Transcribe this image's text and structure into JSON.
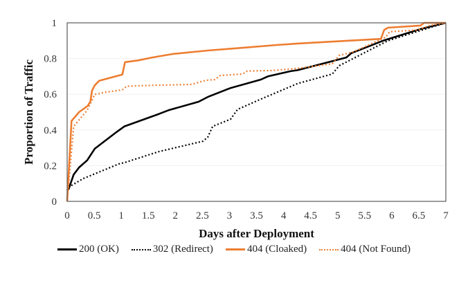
{
  "chart_data": {
    "type": "line",
    "title": "",
    "xlabel": "Days after Deployment",
    "ylabel": "Proportion of  Traffic",
    "xlim": [
      0,
      7
    ],
    "ylim": [
      0,
      1
    ],
    "xticks": [
      "0",
      "0.5",
      "1",
      "1.5",
      "2",
      "2.5",
      "3",
      "3.5",
      "4",
      "4.5",
      "5",
      "5.5",
      "6",
      "6.5",
      "7"
    ],
    "yticks": [
      "0",
      "0.2",
      "0.4",
      "0.6",
      "0.8",
      "1"
    ],
    "grid": "horizontal-light",
    "legend_position": "bottom",
    "series": [
      {
        "name": "200 (OK)",
        "color": "#000000",
        "style": "solid",
        "x": [
          0,
          0.03,
          0.12,
          0.22,
          0.37,
          0.51,
          0.92,
          1.06,
          1.7,
          1.87,
          2.43,
          2.6,
          3.02,
          3.58,
          3.71,
          4.13,
          4.26,
          5.16,
          5.25,
          5.84,
          6.53,
          7.0
        ],
        "y": [
          0.06,
          0.07,
          0.15,
          0.19,
          0.23,
          0.295,
          0.39,
          0.42,
          0.49,
          0.51,
          0.558,
          0.585,
          0.635,
          0.682,
          0.7,
          0.729,
          0.735,
          0.806,
          0.83,
          0.9,
          0.965,
          1.0
        ]
      },
      {
        "name": "302 (Redirect)",
        "color": "#000000",
        "style": "dotted",
        "x": [
          0,
          0.03,
          0.3,
          0.96,
          1.06,
          1.7,
          2.51,
          2.6,
          2.69,
          3.02,
          3.15,
          3.62,
          4.13,
          4.26,
          4.9,
          5.03,
          5.93,
          6.7,
          7.0
        ],
        "y": [
          0.06,
          0.08,
          0.128,
          0.21,
          0.217,
          0.279,
          0.337,
          0.36,
          0.42,
          0.46,
          0.515,
          0.578,
          0.643,
          0.66,
          0.713,
          0.76,
          0.9,
          0.973,
          1.0
        ]
      },
      {
        "name": "404 (Cloaked)",
        "color": "#ED7D31",
        "style": "solid",
        "x": [
          0,
          0.08,
          0.22,
          0.38,
          0.43,
          0.46,
          0.51,
          0.59,
          1.02,
          1.07,
          1.32,
          1.57,
          1.96,
          2.6,
          3.24,
          3.88,
          4.26,
          5.2,
          5.8,
          5.86,
          5.93,
          6.53,
          6.6,
          7.0
        ],
        "y": [
          0.0,
          0.45,
          0.5,
          0.535,
          0.56,
          0.62,
          0.65,
          0.675,
          0.71,
          0.78,
          0.79,
          0.806,
          0.826,
          0.845,
          0.86,
          0.876,
          0.884,
          0.9,
          0.91,
          0.96,
          0.973,
          0.985,
          1.0,
          1.0
        ]
      },
      {
        "name": "404 (Not Found)",
        "color": "#ED7D31",
        "style": "dotted",
        "x": [
          0,
          0.12,
          0.37,
          0.51,
          0.55,
          0.68,
          1.02,
          1.1,
          1.57,
          2.3,
          2.56,
          2.73,
          2.83,
          3.24,
          3.33,
          3.79,
          4.26,
          4.9,
          5.03,
          5.29,
          5.89,
          5.96,
          6.48,
          6.7,
          7.0
        ],
        "y": [
          0.0,
          0.42,
          0.51,
          0.6,
          0.6,
          0.61,
          0.625,
          0.645,
          0.65,
          0.655,
          0.678,
          0.682,
          0.705,
          0.713,
          0.73,
          0.733,
          0.745,
          0.771,
          0.818,
          0.837,
          0.92,
          0.95,
          0.96,
          0.985,
          1.0
        ]
      }
    ]
  }
}
